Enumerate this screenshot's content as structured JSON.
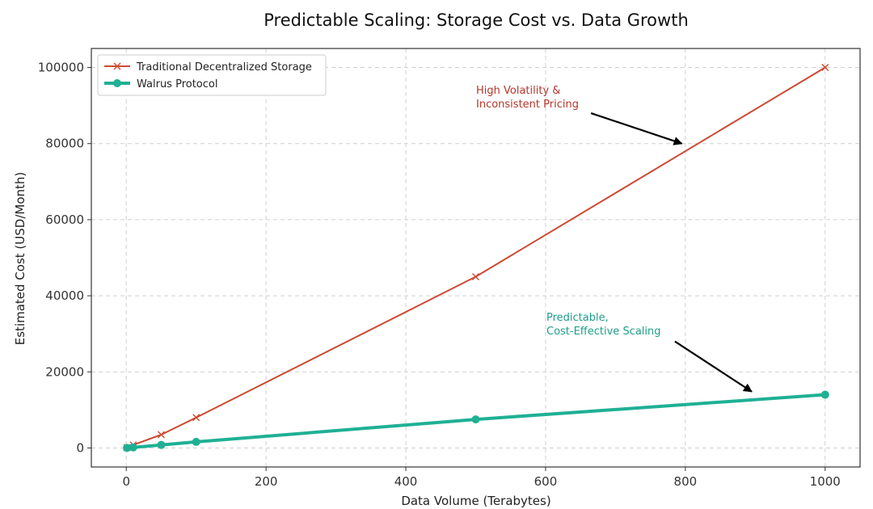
{
  "chart_data": {
    "type": "line",
    "title": "Predictable Scaling: Storage Cost vs. Data Growth",
    "xlabel": "Data Volume (Terabytes)",
    "ylabel": "Estimated Cost (USD/Month)",
    "xlim": [
      -50,
      1050
    ],
    "ylim": [
      -5000,
      105000
    ],
    "xticks": [
      0,
      200,
      400,
      600,
      800,
      1000
    ],
    "yticks": [
      0,
      20000,
      40000,
      60000,
      80000,
      100000
    ],
    "grid": true,
    "legend_position": "top-left",
    "series": [
      {
        "name": "Traditional Decentralized Storage",
        "color": "#cc4a33",
        "marker": "x",
        "x": [
          1,
          10,
          50,
          100,
          500,
          1000
        ],
        "y": [
          100,
          800,
          3500,
          8000,
          45000,
          100000
        ]
      },
      {
        "name": "Walrus Protocol",
        "color": "#1fb094",
        "marker": "circle",
        "x": [
          1,
          10,
          50,
          100,
          500,
          1000
        ],
        "y": [
          15,
          150,
          800,
          1600,
          7500,
          14000
        ]
      }
    ],
    "annotations": [
      {
        "lines": [
          "High Volatility &",
          "Inconsistent Pricing"
        ],
        "color": "#b5352a",
        "arrow_from": [
          665,
          88000
        ],
        "arrow_to": [
          795,
          80000
        ]
      },
      {
        "lines": [
          "Predictable,",
          "Cost-Effective Scaling"
        ],
        "color": "#1e9e88",
        "arrow_from": [
          785,
          28000
        ],
        "arrow_to": [
          895,
          14800
        ]
      }
    ]
  }
}
